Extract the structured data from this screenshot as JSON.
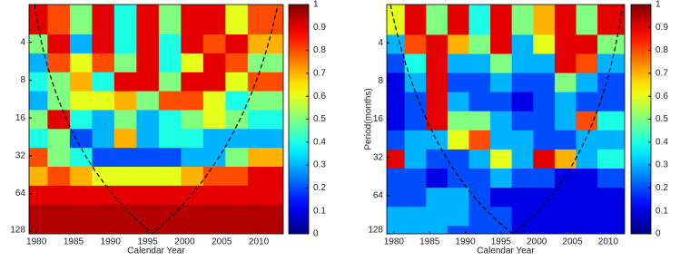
{
  "chart_data": [
    {
      "type": "heatmap",
      "x_label": "Calendar Year",
      "colormap": "jet",
      "x": [
        1980,
        1983,
        1986,
        1989,
        1992,
        1995,
        1998,
        2001,
        2004,
        2007,
        2010
      ],
      "y": [
        3,
        4,
        6,
        8,
        12,
        16,
        24,
        32,
        48,
        64,
        96,
        128
      ],
      "z": [
        [
          0.9,
          0.8,
          0.5,
          0.9,
          0.4,
          0.9,
          0.5,
          0.9,
          0.9,
          0.6,
          0.8
        ],
        [
          0.5,
          0.9,
          0.3,
          0.9,
          0.4,
          0.9,
          0.4,
          0.9,
          0.8,
          0.9,
          0.7
        ],
        [
          0.3,
          0.8,
          0.6,
          0.8,
          0.5,
          0.9,
          0.4,
          0.6,
          0.9,
          0.8,
          0.5
        ],
        [
          0.4,
          0.5,
          0.7,
          0.4,
          0.9,
          0.9,
          0.5,
          0.9,
          0.9,
          0.6,
          0.8
        ],
        [
          0.3,
          0.5,
          0.6,
          0.6,
          0.7,
          0.5,
          0.8,
          0.8,
          0.6,
          0.4,
          0.5
        ],
        [
          0.5,
          0.9,
          0.4,
          0.3,
          0.5,
          0.3,
          0.4,
          0.5,
          0.6,
          0.5,
          0.4
        ],
        [
          0.4,
          0.5,
          0.2,
          0.3,
          0.7,
          0.3,
          0.4,
          0.4,
          0.3,
          0.3,
          0.3
        ],
        [
          0.8,
          0.5,
          0.4,
          0.2,
          0.2,
          0.2,
          0.2,
          0.3,
          0.3,
          0.5,
          0.7
        ],
        [
          0.7,
          0.8,
          0.7,
          0.6,
          0.6,
          0.6,
          0.6,
          0.7,
          0.8,
          0.8,
          0.9
        ],
        [
          0.9,
          0.9,
          0.9,
          0.9,
          0.9,
          0.9,
          0.9,
          0.9,
          0.9,
          0.9,
          0.9
        ],
        [
          0.95,
          0.95,
          0.95,
          0.95,
          0.95,
          0.95,
          0.95,
          0.95,
          0.95,
          0.95,
          0.95
        ],
        [
          0.95,
          0.95,
          0.95,
          0.95,
          0.95,
          0.95,
          0.95,
          0.95,
          0.95,
          0.95,
          0.95
        ]
      ],
      "xlim": [
        1979,
        2013.3
      ],
      "xticks": [
        1980,
        1985,
        1990,
        1995,
        2000,
        2005,
        2010
      ],
      "ylim": [
        2,
        134
      ],
      "yticks": [
        4,
        8,
        16,
        32,
        64,
        128
      ],
      "y_scale": "log2",
      "y_reversed": true,
      "clim": [
        0,
        1
      ],
      "cticks": [
        0,
        0.1,
        0.2,
        0.3,
        0.4,
        0.5,
        0.6,
        0.7,
        0.8,
        0.9,
        1
      ]
    },
    {
      "type": "heatmap",
      "x_label": "Calendar Year",
      "y_label": "Period(months)",
      "colormap": "jet",
      "x": [
        1980,
        1983,
        1986,
        1989,
        1992,
        1995,
        1998,
        2001,
        2004,
        2007,
        2010
      ],
      "y": [
        3,
        4,
        6,
        8,
        12,
        16,
        24,
        32,
        48,
        64,
        96,
        128
      ],
      "z": [
        [
          0.6,
          0.9,
          0.5,
          0.9,
          0.4,
          0.9,
          0.5,
          0.7,
          0.9,
          0.5,
          0.9
        ],
        [
          0.3,
          0.8,
          0.9,
          0.7,
          0.5,
          0.9,
          0.3,
          0.6,
          0.9,
          0.9,
          0.5
        ],
        [
          0.2,
          0.4,
          0.9,
          0.3,
          0.3,
          0.5,
          0.3,
          0.3,
          0.9,
          0.8,
          0.3
        ],
        [
          0.1,
          0.3,
          0.9,
          0.2,
          0.2,
          0.3,
          0.2,
          0.2,
          0.5,
          0.3,
          0.2
        ],
        [
          0.1,
          0.2,
          0.9,
          0.3,
          0.2,
          0.2,
          0.1,
          0.2,
          0.3,
          0.2,
          0.2
        ],
        [
          0.1,
          0.2,
          0.9,
          0.5,
          0.5,
          0.3,
          0.2,
          0.2,
          0.3,
          0.8,
          0.4
        ],
        [
          0.2,
          0.3,
          0.3,
          0.6,
          0.8,
          0.3,
          0.3,
          0.2,
          0.2,
          0.3,
          0.3
        ],
        [
          0.9,
          0.3,
          0.2,
          0.2,
          0.3,
          0.6,
          0.3,
          0.9,
          0.7,
          0.3,
          0.4
        ],
        [
          0.2,
          0.2,
          0.1,
          0.2,
          0.2,
          0.3,
          0.2,
          0.2,
          0.1,
          0.1,
          0.2
        ],
        [
          0.2,
          0.2,
          0.3,
          0.3,
          0.2,
          0.1,
          0.1,
          0.1,
          0.1,
          0.1,
          0.1
        ],
        [
          0.3,
          0.3,
          0.3,
          0.3,
          0.2,
          0.2,
          0.1,
          0.1,
          0.1,
          0.1,
          0.1
        ],
        [
          0.3,
          0.3,
          0.3,
          0.2,
          0.2,
          0.2,
          0.1,
          0.1,
          0.1,
          0.1,
          0.1
        ]
      ],
      "xlim": [
        1979,
        2012.3
      ],
      "xticks": [
        1980,
        1985,
        1990,
        1995,
        2000,
        2005,
        2010
      ],
      "ylim": [
        2,
        128
      ],
      "yticks": [
        4,
        8,
        16,
        32,
        64,
        128
      ],
      "y_scale": "log2",
      "y_reversed": true,
      "clim": [
        0,
        1
      ],
      "cticks": [
        0,
        0.1,
        0.2,
        0.3,
        0.4,
        0.5,
        0.6,
        0.7,
        0.8,
        0.9,
        1
      ]
    }
  ]
}
